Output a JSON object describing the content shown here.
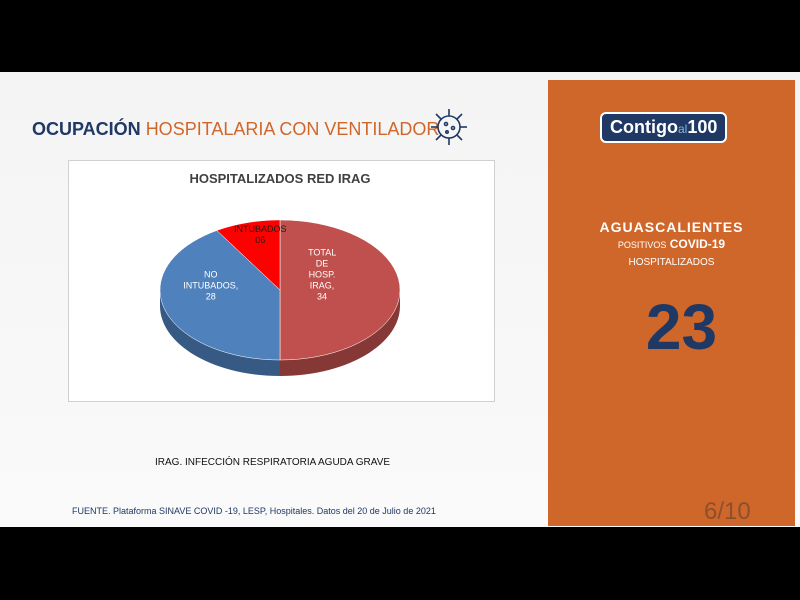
{
  "slide": {
    "title_bold": "OCUPACIÓN",
    "title_rest": "HOSPITALARIA CON VENTILADOR",
    "note": "IRAG. INFECCIÓN RESPIRATORIA AGUDA GRAVE",
    "source": "FUENTE. Plataforma SINAVE COVID -19, LESP, Hospitales. Datos del 20 de Julio de 2021",
    "page": "6/10"
  },
  "panel": {
    "logo_main": "Contigo",
    "logo_small": "al",
    "logo_num": "100",
    "state": "AGUASCALIENTES",
    "line1_small": "POSITIVOS",
    "line1": "COVID-19",
    "line2": "HOSPITALIZADOS",
    "count": "23"
  },
  "chart_data": {
    "type": "pie",
    "title": "HOSPITALIZADOS RED IRAG",
    "categories": [
      "TOTAL DE HOSP. IRAG,",
      "NO INTUBADOS,",
      "INTUBADOS"
    ],
    "values": [
      34,
      28,
      6
    ],
    "value_labels": [
      "34",
      "28",
      "06"
    ],
    "colors": [
      "#c0504d",
      "#4f81bd",
      "#ff0000"
    ]
  }
}
